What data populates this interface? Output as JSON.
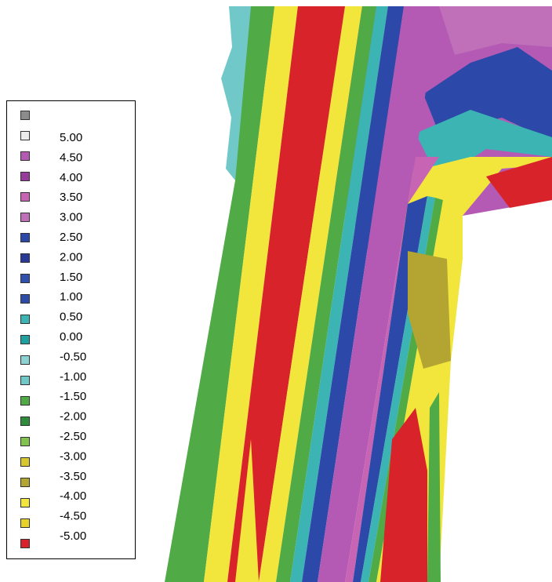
{
  "legend": {
    "colors": [
      "#8c8c8c",
      "#ececec",
      "#b45ab4",
      "#963c9c",
      "#c864b4",
      "#c070b8",
      "#2c48a8",
      "#283a98",
      "#3050b0",
      "#2c4ca8",
      "#3cb4b4",
      "#1ea0a0",
      "#8cd2d2",
      "#70c8c8",
      "#50aa46",
      "#2e8c3c",
      "#82c24e",
      "#d8c830",
      "#b4a432",
      "#f2e63c",
      "#e6d228",
      "#d8232a"
    ],
    "labels": [
      "5.00",
      "4.50",
      "4.00",
      "3.50",
      "3.00",
      "2.50",
      "2.00",
      "1.50",
      "1.00",
      "0.50",
      "0.00",
      "-0.50",
      "-1.00",
      "-1.50",
      "-2.00",
      "-2.50",
      "-3.00",
      "-3.50",
      "-4.00",
      "-4.50",
      "-5.00"
    ]
  }
}
